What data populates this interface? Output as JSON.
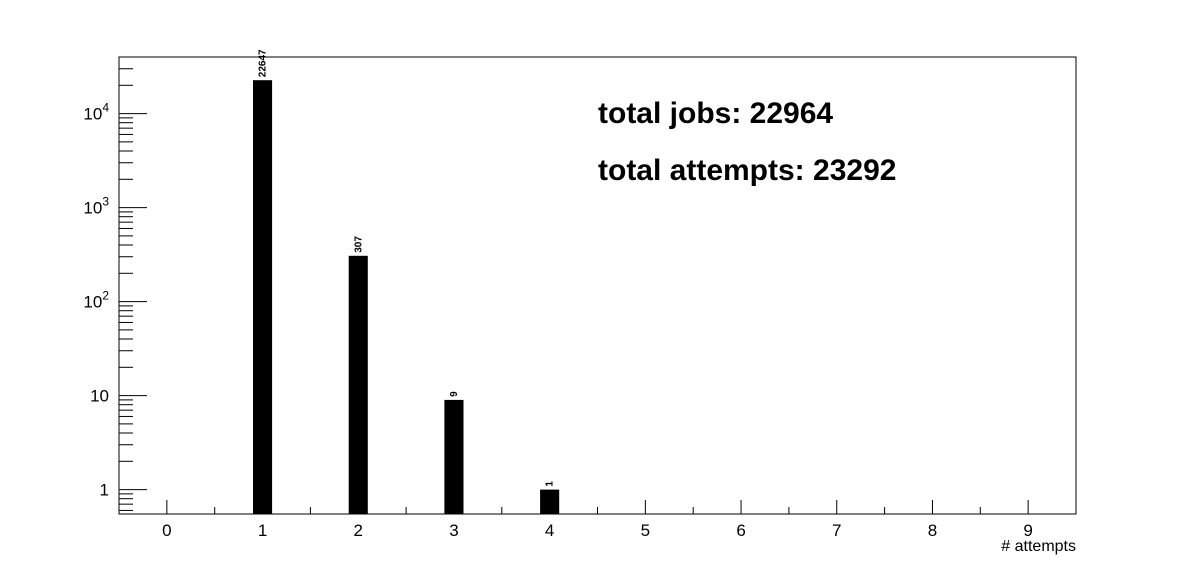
{
  "chart_data": {
    "type": "bar",
    "x": [
      1,
      2,
      3,
      4
    ],
    "values": [
      22647,
      307,
      9,
      1
    ],
    "data_labels": [
      "22647",
      "307",
      "9",
      "1"
    ],
    "xlabel": "# attempts",
    "ylabel": "",
    "title": "",
    "xlim": [
      -0.5,
      9.5
    ],
    "ylim": [
      0.55,
      40000
    ],
    "y_scale": "log",
    "x_tick_labels": [
      "0",
      "1",
      "2",
      "3",
      "4",
      "5",
      "6",
      "7",
      "8",
      "9"
    ],
    "y_tick_labels": [
      {
        "value": 1,
        "base": "1",
        "exp": ""
      },
      {
        "value": 10,
        "base": "10",
        "exp": ""
      },
      {
        "value": 100,
        "base": "10",
        "exp": "2"
      },
      {
        "value": 1000,
        "base": "10",
        "exp": "3"
      },
      {
        "value": 10000,
        "base": "10",
        "exp": "4"
      }
    ],
    "grid": false,
    "bar_color": "#000000",
    "annotations": [
      "total jobs: 22964",
      "total attempts: 23292"
    ]
  }
}
